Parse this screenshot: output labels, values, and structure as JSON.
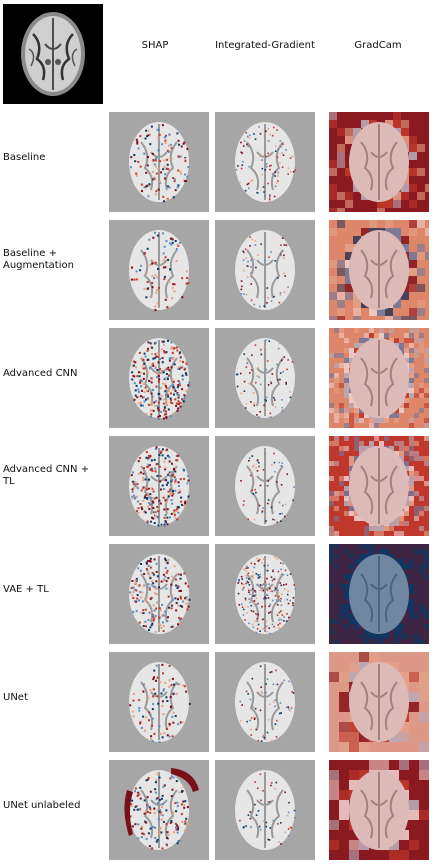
{
  "columns": [
    "SHAP",
    "Integrated-Gradient",
    "GradCam"
  ],
  "rows": [
    {
      "label": "Baseline"
    },
    {
      "label": "Baseline +\n Augmentation"
    },
    {
      "label": "Advanced CNN"
    },
    {
      "label": "Advanced CNN +\n TL"
    },
    {
      "label": "VAE + TL"
    },
    {
      "label": "UNet"
    },
    {
      "label": "UNet unlabeled"
    }
  ],
  "colors": {
    "background_gray": "#a6a6a6",
    "brain_light": "#e6e6e6",
    "red_dark": "#7a0f1c",
    "red_mid": "#c0392b",
    "orange": "#e8a07e",
    "blue_dark": "#0c3866",
    "blue_mid": "#5b8dc0",
    "blue_light": "#b7d0e6"
  }
}
